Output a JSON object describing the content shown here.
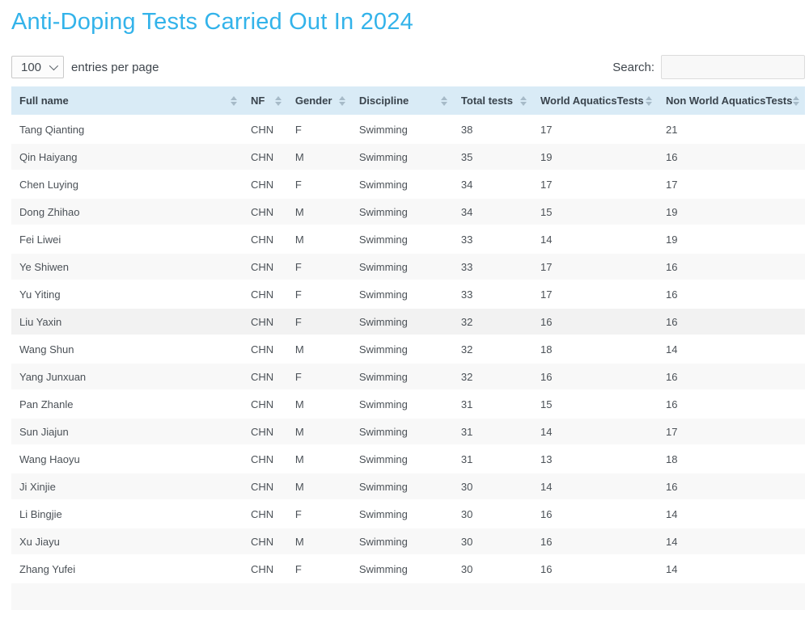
{
  "page": {
    "title": "Anti-Doping Tests Carried Out In 2024"
  },
  "controls": {
    "page_size": {
      "value": "100",
      "label": "entries per page",
      "chevron_icon": "chevron-down"
    },
    "search": {
      "label": "Search:",
      "value": "",
      "placeholder": ""
    }
  },
  "table": {
    "columns": [
      {
        "label": "Full name",
        "sortable": true
      },
      {
        "label": "NF",
        "sortable": true
      },
      {
        "label": "Gender",
        "sortable": true
      },
      {
        "label": "Discipline",
        "sortable": true
      },
      {
        "label": "Total tests",
        "sortable": true
      },
      {
        "label": "World AquaticsTests",
        "sortable": true
      },
      {
        "label": "Non World AquaticsTests",
        "sortable": true
      }
    ],
    "rows": [
      [
        "Tang Qianting",
        "CHN",
        "F",
        "Swimming",
        "38",
        "17",
        "21"
      ],
      [
        "Qin Haiyang",
        "CHN",
        "M",
        "Swimming",
        "35",
        "19",
        "16"
      ],
      [
        "Chen Luying",
        "CHN",
        "F",
        "Swimming",
        "34",
        "17",
        "17"
      ],
      [
        "Dong Zhihao",
        "CHN",
        "M",
        "Swimming",
        "34",
        "15",
        "19"
      ],
      [
        "Fei Liwei",
        "CHN",
        "M",
        "Swimming",
        "33",
        "14",
        "19"
      ],
      [
        "Ye Shiwen",
        "CHN",
        "F",
        "Swimming",
        "33",
        "17",
        "16"
      ],
      [
        "Yu Yiting",
        "CHN",
        "F",
        "Swimming",
        "33",
        "17",
        "16"
      ],
      [
        "Liu Yaxin",
        "CHN",
        "F",
        "Swimming",
        "32",
        "16",
        "16"
      ],
      [
        "Wang Shun",
        "CHN",
        "M",
        "Swimming",
        "32",
        "18",
        "14"
      ],
      [
        "Yang Junxuan",
        "CHN",
        "F",
        "Swimming",
        "32",
        "16",
        "16"
      ],
      [
        "Pan Zhanle",
        "CHN",
        "M",
        "Swimming",
        "31",
        "15",
        "16"
      ],
      [
        "Sun Jiajun",
        "CHN",
        "M",
        "Swimming",
        "31",
        "14",
        "17"
      ],
      [
        "Wang Haoyu",
        "CHN",
        "M",
        "Swimming",
        "31",
        "13",
        "18"
      ],
      [
        "Ji Xinjie",
        "CHN",
        "M",
        "Swimming",
        "30",
        "14",
        "16"
      ],
      [
        "Li Bingjie",
        "CHN",
        "F",
        "Swimming",
        "30",
        "16",
        "14"
      ],
      [
        "Xu Jiayu",
        "CHN",
        "M",
        "Swimming",
        "30",
        "16",
        "14"
      ],
      [
        "Zhang Yufei",
        "CHN",
        "F",
        "Swimming",
        "30",
        "16",
        "14"
      ]
    ],
    "hover_row_index": 7,
    "has_partial_next_row": true
  },
  "colors": {
    "accent_blue": "#33b3ea",
    "header_bg": "#d9ebf6",
    "stripe_bg": "#f8f8f8",
    "hover_bg": "#f2f2f2"
  }
}
